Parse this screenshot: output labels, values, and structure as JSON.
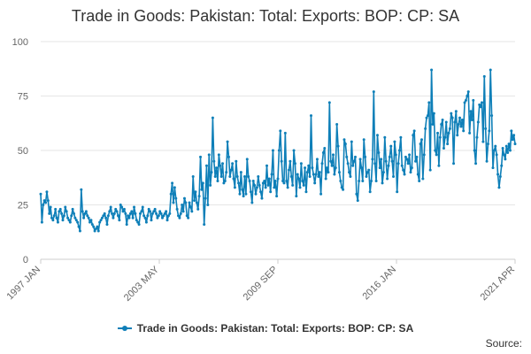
{
  "title": "Trade in Goods: Pakistan: Total: Exports: BOP: CP: SA",
  "source_label": "Source:",
  "colors": {
    "series": "#0e7fb8",
    "grid": "#e6e6e6",
    "axis": "#cccccc"
  },
  "chart_data": {
    "type": "line",
    "title": "Trade in Goods: Pakistan: Total: Exports: BOP: CP: SA",
    "xlabel": "",
    "ylabel": "",
    "ylim": [
      0,
      100
    ],
    "yticks": [
      0,
      25,
      50,
      75,
      100
    ],
    "xticks": [
      "1997 JAN",
      "2003 MAY",
      "2009 SEP",
      "2016 JAN",
      "2021 APR"
    ],
    "x_start": "1997 JAN",
    "frequency": "monthly",
    "grid": true,
    "legend_position": "bottom",
    "series": [
      {
        "name": "Trade in Goods: Pakistan: Total: Exports: BOP: CP: SA",
        "values": [
          30,
          17,
          25,
          27,
          26,
          31,
          27,
          21,
          24,
          19,
          18,
          20,
          23,
          19,
          17,
          22,
          23,
          21,
          18,
          20,
          24,
          22,
          19,
          18,
          17,
          20,
          23,
          21,
          19,
          18,
          17,
          15,
          13,
          32,
          22,
          19,
          21,
          22,
          20,
          19,
          17,
          18,
          16,
          15,
          13,
          14,
          15,
          13,
          17,
          18,
          19,
          20,
          21,
          19,
          16,
          20,
          22,
          24,
          21,
          19,
          21,
          23,
          22,
          20,
          18,
          25,
          24,
          22,
          23,
          21,
          16,
          20,
          19,
          21,
          22,
          19,
          24,
          21,
          18,
          17,
          16,
          21,
          22,
          24,
          20,
          19,
          17,
          20,
          23,
          22,
          18,
          21,
          22,
          23,
          21,
          19,
          20,
          22,
          21,
          19,
          20,
          21,
          22,
          18,
          20,
          21,
          30,
          35,
          26,
          33,
          28,
          23,
          20,
          19,
          21,
          25,
          22,
          28,
          26,
          20,
          19,
          26,
          24,
          22,
          38,
          27,
          31,
          26,
          23,
          29,
          47,
          32,
          35,
          16,
          28,
          43,
          25,
          48,
          34,
          40,
          65,
          45,
          38,
          42,
          36,
          48,
          43,
          38,
          44,
          35,
          36,
          40,
          54,
          47,
          38,
          41,
          44,
          37,
          33,
          45,
          38,
          35,
          30,
          40,
          32,
          29,
          38,
          30,
          46,
          38,
          36,
          31,
          26,
          36,
          34,
          30,
          33,
          38,
          34,
          31,
          28,
          35,
          36,
          33,
          43,
          34,
          37,
          31,
          39,
          50,
          33,
          36,
          29,
          37,
          50,
          59,
          45,
          36,
          35,
          58,
          36,
          33,
          41,
          45,
          38,
          34,
          50,
          44,
          29,
          39,
          37,
          33,
          44,
          36,
          34,
          42,
          31,
          40,
          43,
          38,
          66,
          42,
          39,
          35,
          39,
          46,
          38,
          40,
          30,
          44,
          49,
          51,
          37,
          42,
          40,
          72,
          45,
          43,
          48,
          39,
          42,
          62,
          52,
          40,
          36,
          33,
          32,
          55,
          53,
          47,
          44,
          40,
          38,
          54,
          43,
          45,
          47,
          30,
          27,
          36,
          46,
          42,
          36,
          55,
          47,
          38,
          40,
          41,
          31,
          36,
          46,
          77,
          44,
          36,
          57,
          49,
          42,
          46,
          35,
          40,
          56,
          45,
          37,
          43,
          47,
          52,
          45,
          38,
          54,
          48,
          31,
          44,
          50,
          56,
          43,
          41,
          39,
          47,
          46,
          44,
          48,
          40,
          42,
          57,
          59,
          45,
          47,
          39,
          36,
          53,
          55,
          37,
          48,
          60,
          65,
          66,
          72,
          41,
          87,
          62,
          67,
          50,
          48,
          58,
          43,
          56,
          62,
          64,
          51,
          56,
          63,
          53,
          58,
          60,
          67,
          65,
          44,
          63,
          68,
          57,
          62,
          65,
          61,
          64,
          59,
          72,
          73,
          75,
          77,
          58,
          68,
          64,
          73,
          50,
          44,
          56,
          63,
          71,
          70,
          72,
          54,
          84,
          60,
          45,
          53,
          59,
          87,
          66,
          42,
          50,
          52,
          48,
          39,
          33,
          38,
          43,
          51,
          48,
          46,
          52,
          49,
          53,
          50,
          59,
          55,
          57,
          53
        ]
      }
    ]
  }
}
